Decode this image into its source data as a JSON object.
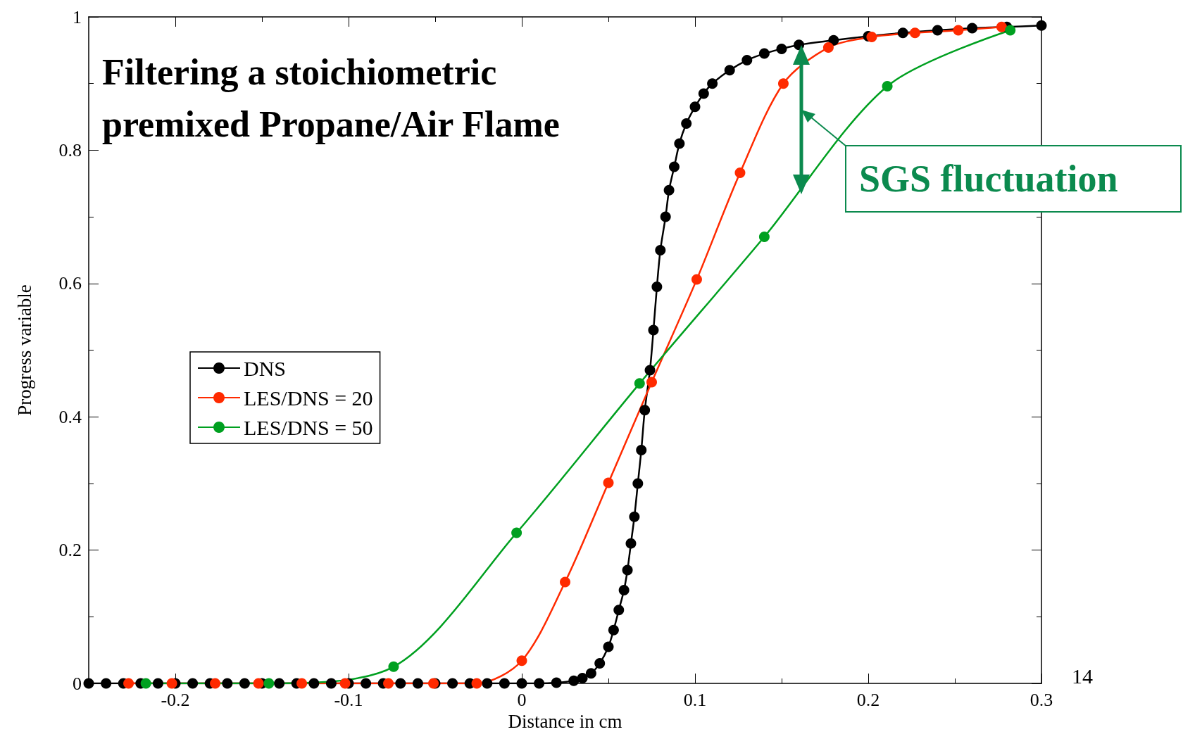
{
  "chart_data": {
    "type": "line",
    "title": "Filtering a stoichiometric\npremixed Propane/Air Flame",
    "xlabel": "Distance in cm",
    "ylabel": "Progress variable",
    "xlim": [
      -0.25,
      0.3
    ],
    "xticks": [
      -0.2,
      -0.1,
      0,
      0.1,
      0.2,
      0.3
    ],
    "ylim": [
      0,
      1
    ],
    "yticks": [
      0,
      0.2,
      0.4,
      0.6,
      0.8,
      1
    ],
    "grid": false,
    "legend": "left",
    "marker": "circle",
    "line_style": "solid",
    "annotations": [
      "SGS fluctuation",
      "14"
    ],
    "series": [
      {
        "name": "DNS",
        "color": "#000000",
        "x": [
          -0.25,
          -0.24,
          -0.23,
          -0.22,
          -0.21,
          -0.2,
          -0.19,
          -0.18,
          -0.17,
          -0.16,
          -0.15,
          -0.14,
          -0.13,
          -0.12,
          -0.11,
          -0.1,
          -0.09,
          -0.08,
          -0.07,
          -0.06,
          -0.05,
          -0.04,
          -0.03,
          -0.02,
          -0.01,
          0,
          0.01,
          0.02,
          0.03,
          0.035,
          0.04,
          0.045,
          0.05,
          0.053,
          0.056,
          0.059,
          0.061,
          0.063,
          0.065,
          0.067,
          0.069,
          0.071,
          0.074,
          0.076,
          0.078,
          0.08,
          0.083,
          0.085,
          0.088,
          0.091,
          0.095,
          0.1,
          0.105,
          0.11,
          0.12,
          0.13,
          0.14,
          0.15,
          0.16,
          0.18,
          0.2,
          0.22,
          0.24,
          0.26,
          0.28,
          0.3
        ],
        "values": [
          0,
          0,
          0,
          0,
          0,
          0,
          0,
          0,
          0,
          0,
          0,
          0,
          0,
          0,
          0,
          0,
          0,
          0,
          0,
          0,
          0,
          0,
          0,
          0,
          0,
          0,
          0,
          0.001,
          0.004,
          0.008,
          0.015,
          0.03,
          0.055,
          0.08,
          0.11,
          0.14,
          0.17,
          0.21,
          0.25,
          0.3,
          0.35,
          0.41,
          0.47,
          0.53,
          0.595,
          0.65,
          0.7,
          0.74,
          0.775,
          0.81,
          0.84,
          0.865,
          0.885,
          0.9,
          0.92,
          0.935,
          0.945,
          0.952,
          0.958,
          0.965,
          0.971,
          0.976,
          0.98,
          0.983,
          0.985,
          0.987
        ]
      },
      {
        "name": "LES/DNS = 20",
        "color": "#ff2a00",
        "x": [
          -0.227,
          -0.202,
          -0.177,
          -0.152,
          -0.127,
          -0.102,
          -0.077,
          -0.051,
          -0.026,
          0,
          0.025,
          0.05,
          0.075,
          0.101,
          0.126,
          0.151,
          0.177,
          0.202,
          0.227,
          0.252,
          0.277
        ],
        "values": [
          0,
          0,
          0,
          0,
          0,
          0,
          0,
          0,
          0,
          0.034,
          0.152,
          0.301,
          0.452,
          0.606,
          0.766,
          0.9,
          0.954,
          0.97,
          0.976,
          0.98,
          0.985
        ]
      },
      {
        "name": "LES/DNS = 50",
        "color": "#00a020",
        "x": [
          -0.217,
          -0.146,
          -0.074,
          -0.003,
          0.068,
          0.14,
          0.211,
          0.282
        ],
        "values": [
          0,
          0,
          0.025,
          0.226,
          0.45,
          0.67,
          0.896,
          0.98
        ]
      }
    ]
  }
}
